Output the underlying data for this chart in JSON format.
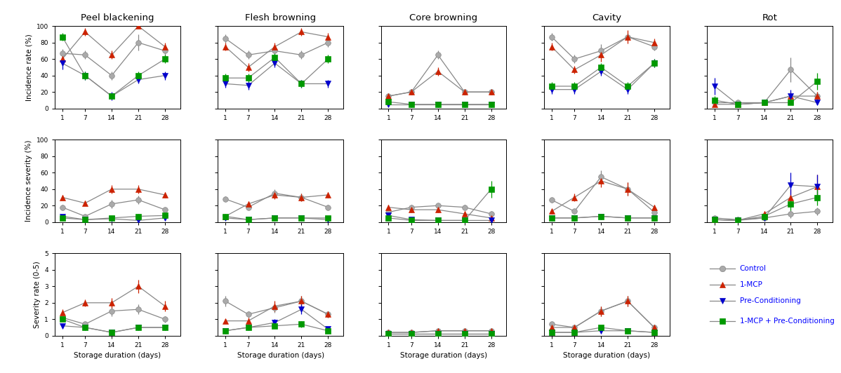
{
  "x": [
    1,
    7,
    14,
    21,
    28
  ],
  "col_titles": [
    "Peel blackening",
    "Flesh browning",
    "Core browning",
    "Cavity",
    "Rot"
  ],
  "row_ylabels": [
    "Incidence rate (%)",
    "Incidence severity (%)",
    "Severity rate (0-5)"
  ],
  "xlabel": "Storage duration (days)",
  "legend_labels": [
    "Control",
    "1-MCP",
    "Pre-Conditioning",
    "1-MCP + Pre-Conditioning"
  ],
  "row0": {
    "Peel blackening": {
      "Control": [
        67,
        65,
        40,
        80,
        70
      ],
      "1-MCP": [
        60,
        93,
        65,
        100,
        75
      ],
      "Pre-Cond": [
        55,
        40,
        15,
        35,
        40
      ],
      "1MCP+Pre": [
        87,
        40,
        15,
        40,
        60
      ]
    },
    "Flesh browning": {
      "Control": [
        85,
        65,
        70,
        65,
        80
      ],
      "1-MCP": [
        75,
        50,
        75,
        93,
        87
      ],
      "Pre-Cond": [
        30,
        28,
        55,
        30,
        30
      ],
      "1MCP+Pre": [
        37,
        37,
        62,
        30,
        60
      ]
    },
    "Core browning": {
      "Control": [
        15,
        20,
        65,
        20,
        20
      ],
      "1-MCP": [
        15,
        20,
        45,
        20,
        20
      ],
      "Pre-Cond": [
        5,
        5,
        5,
        5,
        5
      ],
      "1MCP+Pre": [
        8,
        5,
        5,
        5,
        5
      ]
    },
    "Cavity": {
      "Control": [
        87,
        60,
        70,
        87,
        75
      ],
      "1-MCP": [
        75,
        47,
        65,
        87,
        80
      ],
      "Pre-Cond": [
        23,
        23,
        45,
        23,
        55
      ],
      "1MCP+Pre": [
        27,
        27,
        50,
        27,
        55
      ]
    },
    "Rot": {
      "Control": [
        7,
        7,
        7,
        47,
        15
      ],
      "1-MCP": [
        5,
        5,
        7,
        15,
        15
      ],
      "Pre-Cond": [
        27,
        5,
        7,
        15,
        7
      ],
      "1MCP+Pre": [
        10,
        5,
        7,
        7,
        33
      ]
    }
  },
  "row1": {
    "Peel blackening": {
      "Control": [
        18,
        7,
        22,
        27,
        15
      ],
      "1-MCP": [
        30,
        23,
        40,
        40,
        33
      ],
      "Pre-Cond": [
        7,
        3,
        4,
        2,
        5
      ],
      "1MCP+Pre": [
        5,
        3,
        5,
        7,
        8
      ]
    },
    "Flesh browning": {
      "Control": [
        28,
        18,
        35,
        30,
        18
      ],
      "1-MCP": [
        7,
        22,
        33,
        30,
        33
      ],
      "Pre-Cond": [
        5,
        3,
        5,
        5,
        3
      ],
      "1MCP+Pre": [
        7,
        3,
        5,
        5,
        5
      ]
    },
    "Core browning": {
      "Control": [
        12,
        18,
        20,
        18,
        10
      ],
      "1-MCP": [
        18,
        15,
        15,
        10,
        5
      ],
      "Pre-Cond": [
        8,
        3,
        2,
        2,
        2
      ],
      "1MCP+Pre": [
        5,
        2,
        2,
        2,
        40
      ]
    },
    "Cavity": {
      "Control": [
        27,
        13,
        55,
        40,
        12
      ],
      "1-MCP": [
        13,
        30,
        50,
        40,
        18
      ],
      "Pre-Cond": [
        5,
        5,
        7,
        5,
        5
      ],
      "1MCP+Pre": [
        5,
        5,
        7,
        5,
        5
      ]
    },
    "Rot": {
      "Control": [
        5,
        3,
        5,
        10,
        13
      ],
      "1-MCP": [
        3,
        2,
        10,
        30,
        43
      ],
      "Pre-Cond": [
        3,
        2,
        5,
        45,
        43
      ],
      "1MCP+Pre": [
        3,
        2,
        7,
        22,
        30
      ]
    }
  },
  "row2": {
    "Peel blackening": {
      "Control": [
        1.1,
        0.7,
        1.5,
        1.6,
        1.0
      ],
      "1-MCP": [
        1.4,
        2.0,
        2.0,
        3.0,
        1.8
      ],
      "Pre-Cond": [
        0.6,
        0.5,
        0.2,
        0.5,
        0.5
      ],
      "1MCP+Pre": [
        1.0,
        0.5,
        0.2,
        0.5,
        0.5
      ]
    },
    "Flesh browning": {
      "Control": [
        2.1,
        1.3,
        1.7,
        2.1,
        1.3
      ],
      "1-MCP": [
        0.9,
        0.9,
        1.8,
        2.1,
        1.3
      ],
      "Pre-Cond": [
        0.3,
        0.5,
        0.8,
        1.6,
        0.4
      ],
      "1MCP+Pre": [
        0.3,
        0.5,
        0.6,
        0.7,
        0.3
      ]
    },
    "Core browning": {
      "Control": [
        0.2,
        0.2,
        0.3,
        0.3,
        0.3
      ],
      "1-MCP": [
        0.2,
        0.2,
        0.3,
        0.3,
        0.3
      ],
      "Pre-Cond": [
        0.1,
        0.1,
        0.1,
        0.1,
        0.1
      ],
      "1MCP+Pre": [
        0.1,
        0.1,
        0.1,
        0.1,
        0.1
      ]
    },
    "Cavity": {
      "Control": [
        0.7,
        0.5,
        1.5,
        2.1,
        0.5
      ],
      "1-MCP": [
        0.5,
        0.5,
        1.5,
        2.1,
        0.5
      ],
      "Pre-Cond": [
        0.2,
        0.2,
        0.3,
        0.3,
        0.2
      ],
      "1MCP+Pre": [
        0.2,
        0.2,
        0.5,
        0.3,
        0.2
      ]
    },
    "Rot": {
      "Control": [
        0.2,
        0.1,
        0.2,
        0.4,
        0.2
      ],
      "1-MCP": [
        0.2,
        0.1,
        0.2,
        0.3,
        0.3
      ],
      "Pre-Cond": [
        0.2,
        0.1,
        0.2,
        0.4,
        0.4
      ],
      "1MCP+Pre": [
        0.1,
        0.1,
        0.2,
        0.2,
        0.4
      ]
    }
  },
  "row0_err": {
    "Peel blackening": {
      "Control": [
        5,
        5,
        5,
        10,
        8
      ],
      "1-MCP": [
        5,
        5,
        5,
        0,
        5
      ],
      "Pre-Cond": [
        8,
        5,
        5,
        5,
        5
      ],
      "1MCP+Pre": [
        5,
        5,
        3,
        5,
        5
      ]
    },
    "Flesh browning": {
      "Control": [
        5,
        5,
        5,
        5,
        5
      ],
      "1-MCP": [
        5,
        5,
        5,
        5,
        5
      ],
      "Pre-Cond": [
        5,
        5,
        5,
        5,
        5
      ],
      "1MCP+Pre": [
        5,
        5,
        5,
        5,
        5
      ]
    },
    "Core browning": {
      "Control": [
        3,
        3,
        5,
        3,
        3
      ],
      "1-MCP": [
        3,
        3,
        5,
        3,
        3
      ],
      "Pre-Cond": [
        2,
        2,
        2,
        2,
        2
      ],
      "1MCP+Pre": [
        2,
        2,
        2,
        2,
        2
      ]
    },
    "Cavity": {
      "Control": [
        5,
        5,
        8,
        5,
        5
      ],
      "1-MCP": [
        5,
        5,
        8,
        8,
        5
      ],
      "Pre-Cond": [
        5,
        5,
        5,
        5,
        5
      ],
      "1MCP+Pre": [
        5,
        5,
        5,
        5,
        5
      ]
    },
    "Rot": {
      "Control": [
        5,
        2,
        2,
        15,
        5
      ],
      "1-MCP": [
        2,
        2,
        2,
        5,
        5
      ],
      "Pre-Cond": [
        10,
        2,
        2,
        8,
        2
      ],
      "1MCP+Pre": [
        5,
        2,
        2,
        2,
        10
      ]
    }
  },
  "row1_err": {
    "Peel blackening": {
      "Control": [
        3,
        2,
        5,
        5,
        3
      ],
      "1-MCP": [
        3,
        3,
        5,
        5,
        3
      ],
      "Pre-Cond": [
        2,
        1,
        2,
        2,
        2
      ],
      "1MCP+Pre": [
        2,
        1,
        2,
        3,
        3
      ]
    },
    "Flesh browning": {
      "Control": [
        3,
        2,
        5,
        5,
        3
      ],
      "1-MCP": [
        2,
        3,
        5,
        5,
        3
      ],
      "Pre-Cond": [
        2,
        1,
        2,
        2,
        2
      ],
      "1MCP+Pre": [
        2,
        1,
        2,
        2,
        2
      ]
    },
    "Core browning": {
      "Control": [
        3,
        3,
        3,
        3,
        3
      ],
      "1-MCP": [
        3,
        3,
        3,
        3,
        3
      ],
      "Pre-Cond": [
        2,
        1,
        1,
        1,
        1
      ],
      "1MCP+Pre": [
        2,
        1,
        1,
        1,
        10
      ]
    },
    "Cavity": {
      "Control": [
        3,
        3,
        8,
        8,
        3
      ],
      "1-MCP": [
        3,
        5,
        8,
        8,
        3
      ],
      "Pre-Cond": [
        2,
        2,
        3,
        2,
        2
      ],
      "1MCP+Pre": [
        2,
        2,
        3,
        2,
        2
      ]
    },
    "Rot": {
      "Control": [
        2,
        1,
        2,
        5,
        5
      ],
      "1-MCP": [
        1,
        1,
        3,
        10,
        15
      ],
      "Pre-Cond": [
        1,
        1,
        2,
        15,
        15
      ],
      "1MCP+Pre": [
        1,
        1,
        2,
        8,
        10
      ]
    }
  },
  "row2_err": {
    "Peel blackening": {
      "Control": [
        0.15,
        0.1,
        0.3,
        0.3,
        0.2
      ],
      "1-MCP": [
        0.2,
        0.2,
        0.3,
        0.4,
        0.3
      ],
      "Pre-Cond": [
        0.1,
        0.1,
        0.05,
        0.1,
        0.1
      ],
      "1MCP+Pre": [
        0.1,
        0.1,
        0.05,
        0.1,
        0.1
      ]
    },
    "Flesh browning": {
      "Control": [
        0.3,
        0.2,
        0.3,
        0.3,
        0.2
      ],
      "1-MCP": [
        0.1,
        0.2,
        0.3,
        0.3,
        0.2
      ],
      "Pre-Cond": [
        0.05,
        0.1,
        0.2,
        0.3,
        0.1
      ],
      "1MCP+Pre": [
        0.05,
        0.1,
        0.1,
        0.2,
        0.05
      ]
    },
    "Core browning": {
      "Control": [
        0.05,
        0.05,
        0.1,
        0.1,
        0.05
      ],
      "1-MCP": [
        0.05,
        0.05,
        0.1,
        0.1,
        0.05
      ],
      "Pre-Cond": [
        0.02,
        0.02,
        0.02,
        0.02,
        0.02
      ],
      "1MCP+Pre": [
        0.02,
        0.02,
        0.02,
        0.02,
        0.02
      ]
    },
    "Cavity": {
      "Control": [
        0.1,
        0.1,
        0.3,
        0.3,
        0.1
      ],
      "1-MCP": [
        0.1,
        0.1,
        0.3,
        0.3,
        0.1
      ],
      "Pre-Cond": [
        0.05,
        0.05,
        0.1,
        0.1,
        0.05
      ],
      "1MCP+Pre": [
        0.05,
        0.05,
        0.1,
        0.1,
        0.05
      ]
    },
    "Rot": {
      "Control": [
        0.05,
        0.02,
        0.05,
        0.1,
        0.05
      ],
      "1-MCP": [
        0.05,
        0.02,
        0.05,
        0.1,
        0.1
      ],
      "Pre-Cond": [
        0.05,
        0.02,
        0.05,
        0.1,
        0.1
      ],
      "1MCP+Pre": [
        0.02,
        0.02,
        0.05,
        0.05,
        0.1
      ]
    }
  }
}
